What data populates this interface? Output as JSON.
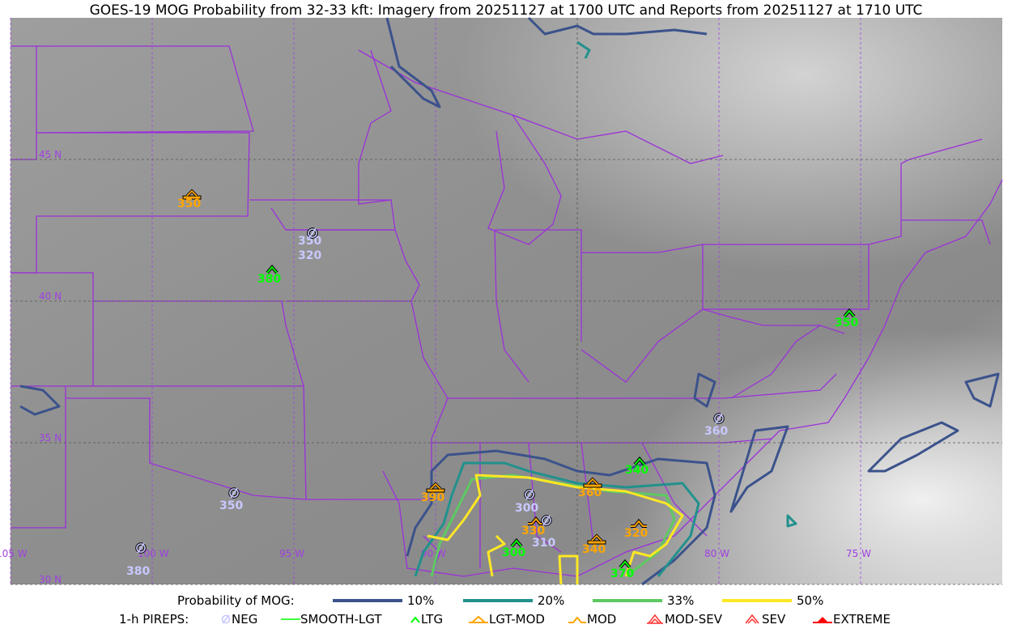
{
  "title": "GOES-19 MOG Probability from 32-33 kft: Imagery from 20251127 at 1700 UTC and Reports from 20251127 at 1710 UTC",
  "map": {
    "lat_labels": [
      "45 N",
      "40 N",
      "35 N",
      "30 N"
    ],
    "lon_labels": [
      "105 W",
      "100 W",
      "95 W",
      "90 W",
      "80 W",
      "75 W"
    ],
    "boundary_color": "#9b30d9",
    "grid_color": "#a040e0"
  },
  "legend": {
    "probability_label": "Probability of MOG:",
    "probability_levels": [
      {
        "label": "10%",
        "color": "#3b528b"
      },
      {
        "label": "20%",
        "color": "#21918c"
      },
      {
        "label": "33%",
        "color": "#5ec962"
      },
      {
        "label": "50%",
        "color": "#fde725"
      }
    ],
    "pireps_label": "1-h PIREPS:",
    "pirep_types": [
      {
        "label": "NEG",
        "icon": "neg-icon",
        "color": "#c8c8ff"
      },
      {
        "label": "SMOOTH-LGT",
        "icon": "smooth-lgt-icon",
        "color": "#00ff00"
      },
      {
        "label": "LTG",
        "icon": "ltg-icon",
        "color": "#00ff00"
      },
      {
        "label": "LGT-MOD",
        "icon": "lgt-mod-icon",
        "color": "#ffa500"
      },
      {
        "label": "MOD",
        "icon": "mod-icon",
        "color": "#ffa500"
      },
      {
        "label": "MOD-SEV",
        "icon": "mod-sev-icon",
        "color": "#ff3030"
      },
      {
        "label": "SEV",
        "icon": "sev-icon",
        "color": "#ff3030"
      },
      {
        "label": "EXTREME",
        "icon": "extreme-icon",
        "color": "#ff0000"
      }
    ]
  },
  "reports": [
    {
      "type": "LGT-MOD",
      "altitude": "350"
    },
    {
      "type": "NEG",
      "altitude": "350"
    },
    {
      "type": "NEG",
      "altitude": "320"
    },
    {
      "type": "LTG",
      "altitude": "380"
    },
    {
      "type": "LTG",
      "altitude": "350"
    },
    {
      "type": "NEG",
      "altitude": "360"
    },
    {
      "type": "LTG",
      "altitude": "340"
    },
    {
      "type": "LGT-MOD",
      "altitude": "390"
    },
    {
      "type": "LGT-MOD",
      "altitude": "360"
    },
    {
      "type": "NEG",
      "altitude": "300"
    },
    {
      "type": "MOD",
      "altitude": "330"
    },
    {
      "type": "NEG",
      "altitude": "310"
    },
    {
      "type": "LTG",
      "altitude": "300"
    },
    {
      "type": "MOD",
      "altitude": "320"
    },
    {
      "type": "LGT-MOD",
      "altitude": "340"
    },
    {
      "type": "LTG",
      "altitude": "370"
    },
    {
      "type": "NEG",
      "altitude": "350"
    },
    {
      "type": "NEG",
      "altitude": "380"
    }
  ]
}
